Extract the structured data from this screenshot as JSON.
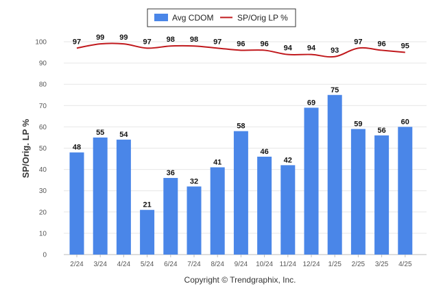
{
  "chart_data": {
    "type": "bar",
    "categories": [
      "2/24",
      "3/24",
      "4/24",
      "5/24",
      "6/24",
      "7/24",
      "8/24",
      "9/24",
      "10/24",
      "11/24",
      "12/24",
      "1/25",
      "2/25",
      "3/25",
      "4/25"
    ],
    "series": [
      {
        "name": "Avg CDOM",
        "type": "bar",
        "color": "#4a86e8",
        "values": [
          48,
          55,
          54,
          21,
          36,
          32,
          41,
          58,
          46,
          42,
          69,
          75,
          59,
          56,
          60
        ]
      },
      {
        "name": "SP/Orig LP %",
        "type": "line",
        "color": "#c0171b",
        "values": [
          97,
          99,
          99,
          97,
          98,
          98,
          97,
          96,
          96,
          94,
          94,
          93,
          97,
          96,
          95
        ]
      }
    ],
    "ylabel": "SP/Orig. LP %",
    "ylim": [
      0,
      100
    ],
    "yticks": [
      "0",
      "10",
      "20",
      "30",
      "40",
      "50",
      "60",
      "70",
      "80",
      "90",
      "100"
    ],
    "grid": true,
    "legend_position": "top-center"
  },
  "footer": {
    "copyright": "Copyright © Trendgraphix, Inc."
  }
}
